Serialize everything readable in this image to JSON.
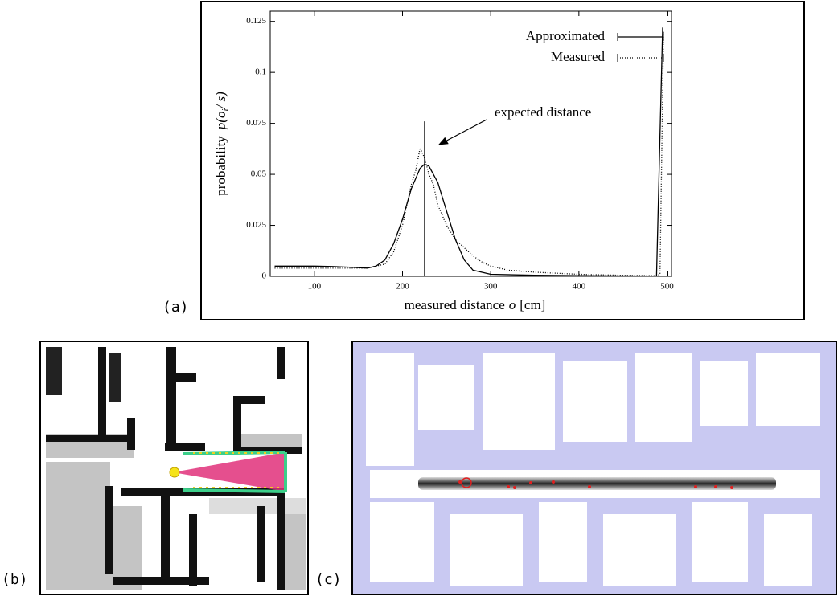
{
  "chart_data": {
    "type": "line",
    "xlabel": "measured distance",
    "xlabel_math": "o",
    "xlabel_unit": "[cm]",
    "ylabel": "probability",
    "ylabel_math": "p(o",
    "ylabel_sub": "i",
    "ylabel_end": "/ s)",
    "annotation": "expected distance",
    "expected_line": {
      "x": 225,
      "y_top": 0.076
    },
    "xlim": [
      50,
      505
    ],
    "ylim": [
      0,
      0.13
    ],
    "xticks": [
      100,
      200,
      300,
      400,
      500
    ],
    "yticks": [
      0,
      0.025,
      0.05,
      0.075,
      0.1,
      0.125
    ],
    "series": [
      {
        "name": "Approximated",
        "color": "#000000",
        "style": "solid",
        "x": [
          55,
          80,
          100,
          120,
          140,
          160,
          170,
          180,
          190,
          200,
          210,
          220,
          225,
          230,
          240,
          250,
          260,
          270,
          280,
          300,
          350,
          400,
          450,
          488,
          495
        ],
        "values": [
          0.005,
          0.005,
          0.005,
          0.0048,
          0.0045,
          0.004,
          0.005,
          0.008,
          0.016,
          0.028,
          0.043,
          0.053,
          0.055,
          0.054,
          0.046,
          0.032,
          0.018,
          0.008,
          0.003,
          0.001,
          0.0005,
          0.0003,
          0.0002,
          0.0001,
          0.122
        ]
      },
      {
        "name": "Measured",
        "color": "#000000",
        "style": "dotted",
        "x": [
          55,
          100,
          140,
          160,
          180,
          190,
          200,
          210,
          215,
          220,
          225,
          230,
          235,
          240,
          250,
          260,
          270,
          280,
          290,
          300,
          320,
          350,
          400,
          450,
          488,
          492,
          496
        ],
        "values": [
          0.004,
          0.004,
          0.004,
          0.004,
          0.006,
          0.012,
          0.025,
          0.045,
          0.052,
          0.063,
          0.058,
          0.05,
          0.045,
          0.035,
          0.025,
          0.018,
          0.014,
          0.01,
          0.007,
          0.005,
          0.003,
          0.002,
          0.001,
          0.0005,
          0.0003,
          0.001,
          0.12
        ]
      }
    ]
  },
  "panel_labels": [
    "(a)",
    "(b)",
    "(c)"
  ]
}
